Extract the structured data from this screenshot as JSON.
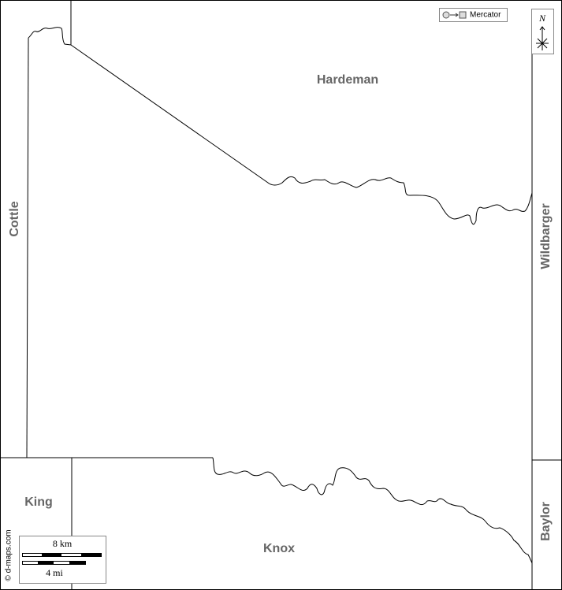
{
  "map": {
    "counties": {
      "hardeman": "Hardeman",
      "cottle": "Cottle",
      "wilbarger": "Wildbarger",
      "king": "King",
      "knox": "Knox",
      "baylor": "Baylor"
    },
    "projection": "Mercator",
    "north": "N",
    "scale": {
      "km": "8 km",
      "mi": "4 mi"
    },
    "credit": "© d-maps.com"
  }
}
